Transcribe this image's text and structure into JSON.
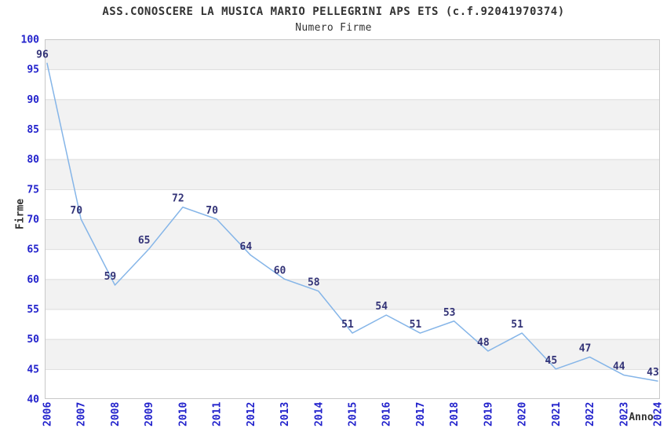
{
  "chart_data": {
    "type": "line",
    "title": "ASS.CONOSCERE LA MUSICA MARIO PELLEGRINI APS ETS (c.f.92041970374)",
    "subtitle": "Numero Firme",
    "xlabel": "Anno",
    "ylabel": "Firme",
    "categories": [
      "2006",
      "2007",
      "2008",
      "2009",
      "2010",
      "2011",
      "2012",
      "2013",
      "2014",
      "2015",
      "2016",
      "2017",
      "2018",
      "2019",
      "2020",
      "2021",
      "2022",
      "2023",
      "2024"
    ],
    "values": [
      96,
      70,
      59,
      65,
      72,
      70,
      64,
      60,
      58,
      51,
      54,
      51,
      53,
      48,
      51,
      45,
      47,
      44,
      43
    ],
    "ylim": [
      40,
      100
    ],
    "ytick_step": 5,
    "grid": "horizontal-bands-alternating",
    "legend_position": "none",
    "point_labels_visible": true,
    "colors": {
      "line": "#85b5e8",
      "tick_label": "#2222cc",
      "point_label": "#333377",
      "text": "#333333",
      "band_gray": "#f2f2f2",
      "band_white": "#ffffff",
      "gridline": "#dcdcdc",
      "plot_border": "#c8c8c8",
      "background": "#ffffff"
    }
  }
}
